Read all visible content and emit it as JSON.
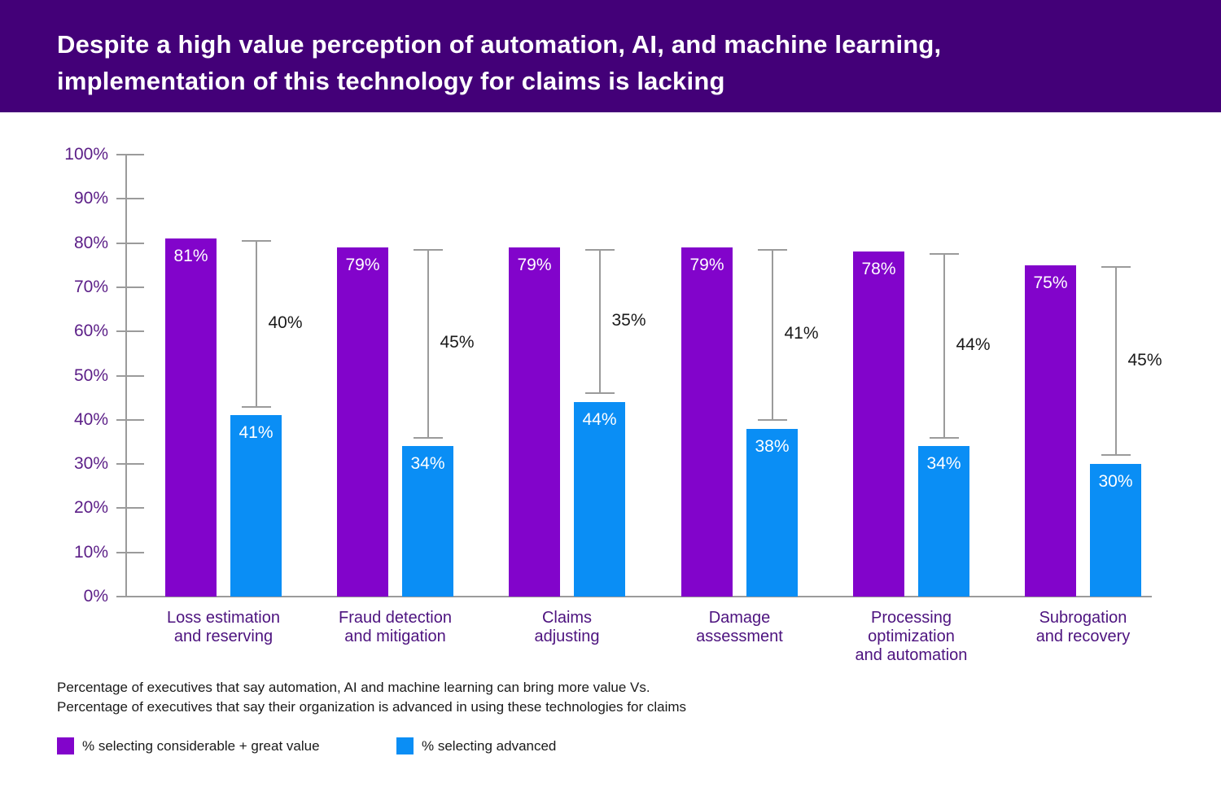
{
  "header": {
    "title_line1": "Despite a high value perception of automation, AI, and machine learning,",
    "title_line2": "implementation of this technology for claims is lacking",
    "background_color": "#430078"
  },
  "chart_data": {
    "type": "bar",
    "title": "Despite a high value perception of automation, AI, and machine learning, implementation of this technology for claims is lacking",
    "categories": [
      "Loss estimation\nand reserving",
      "Fraud detection\nand mitigation",
      "Claims\nadjusting",
      "Damage\nassessment",
      "Processing\noptimization\nand automation",
      "Subrogation\nand recovery"
    ],
    "series": [
      {
        "name": "% selecting considerable + great value",
        "color": "#8204CB",
        "values": [
          81,
          79,
          79,
          79,
          78,
          75
        ]
      },
      {
        "name": "% selecting advanced",
        "color": "#0A8EF5",
        "values": [
          41,
          34,
          44,
          38,
          34,
          30
        ]
      }
    ],
    "gap_labels": [
      40,
      45,
      35,
      41,
      44,
      45
    ],
    "yticks": [
      "0%",
      "10%",
      "20%",
      "30%",
      "40%",
      "50%",
      "60%",
      "70%",
      "80%",
      "90%",
      "100%"
    ],
    "ylim": [
      0,
      100
    ],
    "grid": false,
    "legend_position": "bottom",
    "axis_color": "#9b9b9b",
    "ytick_label_color": "#5B1E87",
    "category_label_color": "#4D137F"
  },
  "footnote": {
    "line1": "Percentage of executives that say automation, AI and machine learning can bring more value Vs.",
    "line2": "Percentage of executives that say their organization is advanced in using these technologies for claims"
  }
}
